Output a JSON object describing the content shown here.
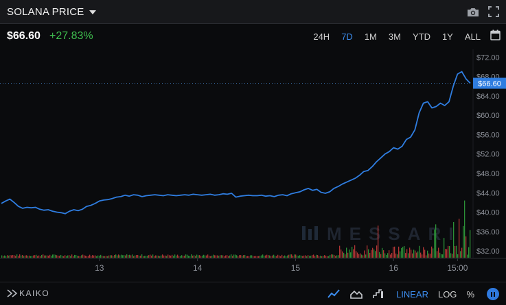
{
  "header": {
    "title": "SOLANA PRICE",
    "price": "$66.60",
    "change": "+27.83%"
  },
  "toolbar": {
    "ranges": [
      "24H",
      "7D",
      "1M",
      "3M",
      "YTD",
      "1Y",
      "ALL"
    ],
    "active_range": "7D",
    "scales": [
      "LINEAR",
      "LOG",
      "%"
    ],
    "active_scale": "LINEAR",
    "provider": "KAIKO"
  },
  "watermark": "MESSARI",
  "colors": {
    "line": "#2f7de0",
    "accent": "#3d8ef0",
    "positive": "#3fbf4f",
    "volume_up": "#2f9e3c",
    "volume_down": "#c23a3a",
    "background": "#0a0b0d"
  },
  "chart_data": {
    "type": "line",
    "title": "SOLANA PRICE",
    "x_tick_labels": [
      "13",
      "14",
      "15",
      "16",
      "15:00"
    ],
    "y_tick_labels": [
      "$72.00",
      "$68.00",
      "$64.00",
      "$60.00",
      "$56.00",
      "$52.00",
      "$48.00",
      "$44.00",
      "$40.00",
      "$36.00",
      "$32.00"
    ],
    "ylim": [
      30.6,
      73.6
    ],
    "xlim": [
      0,
      110
    ],
    "x_ticks": [
      23,
      46,
      69,
      92,
      107
    ],
    "last_price": 66.6,
    "last_price_label": "$66.60",
    "series": [
      {
        "x": [
          0,
          1,
          2,
          3,
          4,
          5,
          6,
          7,
          8,
          9,
          10,
          11,
          12,
          13,
          14,
          15,
          16,
          17,
          18,
          19,
          20,
          21,
          22,
          23,
          24,
          25,
          26,
          27,
          28,
          29,
          30,
          31,
          32,
          33,
          34,
          35,
          36,
          37,
          38,
          39,
          40,
          41,
          42,
          43,
          44,
          45,
          46,
          47,
          48,
          49,
          50,
          51,
          52,
          53,
          54,
          55,
          56,
          57,
          58,
          59,
          60,
          61,
          62,
          63,
          64,
          65,
          66,
          67,
          68,
          69,
          70,
          71,
          72,
          73,
          74,
          75,
          76,
          77,
          78,
          79,
          80,
          81,
          82,
          83,
          84,
          85,
          86,
          87,
          88,
          89,
          90,
          91,
          92,
          93,
          94,
          95,
          96,
          97,
          98,
          99,
          100,
          101,
          102,
          103,
          104,
          105,
          106,
          107,
          108,
          109,
          110
        ],
        "values": [
          41.8,
          42.3,
          42.7,
          42.0,
          41.2,
          40.8,
          41.0,
          40.9,
          41.0,
          40.6,
          40.4,
          40.5,
          40.2,
          40.0,
          39.9,
          39.7,
          40.2,
          40.5,
          40.3,
          40.6,
          41.2,
          41.4,
          41.8,
          42.3,
          42.5,
          42.6,
          42.8,
          43.1,
          43.2,
          43.5,
          43.3,
          43.6,
          43.5,
          43.2,
          43.4,
          43.5,
          43.6,
          43.5,
          43.4,
          43.6,
          43.5,
          43.4,
          43.5,
          43.6,
          43.5,
          43.7,
          43.6,
          43.5,
          43.6,
          43.7,
          43.5,
          43.6,
          43.8,
          43.7,
          43.9,
          43.1,
          43.3,
          43.4,
          43.5,
          43.4,
          43.4,
          43.5,
          43.3,
          43.4,
          43.2,
          43.5,
          43.6,
          43.4,
          43.8,
          44.0,
          44.2,
          44.6,
          44.9,
          44.5,
          44.7,
          44.1,
          43.9,
          44.2,
          44.9,
          45.3,
          45.8,
          46.2,
          46.6,
          47.0,
          47.6,
          48.4,
          48.6,
          49.4,
          50.4,
          51.2,
          52.0,
          52.5,
          53.3,
          53.0,
          53.6,
          55.0,
          55.5,
          57.0,
          60.5,
          62.5,
          62.8,
          61.5,
          61.8,
          62.5,
          62.0,
          62.8,
          66.0,
          68.5,
          69.0,
          67.5,
          66.6
        ]
      }
    ]
  }
}
